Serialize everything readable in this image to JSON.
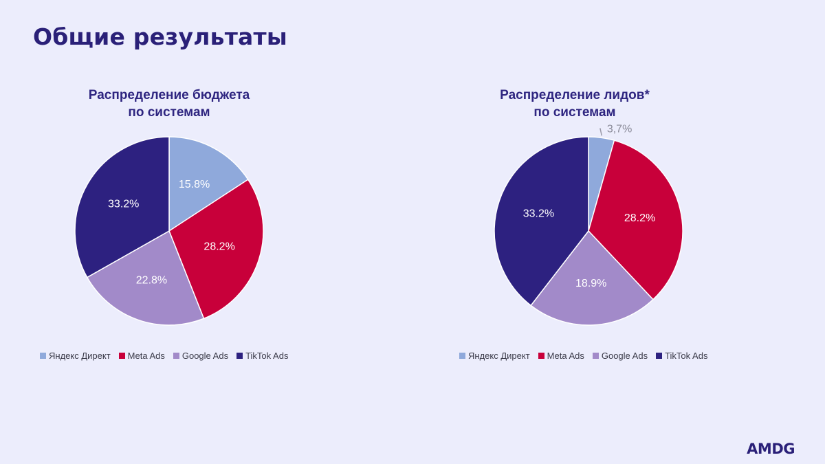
{
  "page": {
    "title": "Общие результаты",
    "logo": "AMDG"
  },
  "chart_data": [
    {
      "type": "pie",
      "title_lines": [
        "Распределение бюджета",
        "по системам"
      ],
      "categories": [
        "Яндекс Директ",
        "Meta Ads",
        "Google Ads",
        "TikTok Ads"
      ],
      "values": [
        15.8,
        28.2,
        22.8,
        33.2
      ],
      "labels": [
        "15.8%",
        "28.2%",
        "22.8%",
        "33.2%"
      ],
      "colors": [
        "#8FA9DB",
        "#C8003A",
        "#A28AC9",
        "#2D2180"
      ],
      "legend_position": "bottom"
    },
    {
      "type": "pie",
      "title_lines": [
        "Распределение лидов*",
        "по системам"
      ],
      "categories": [
        "Яндекс Директ",
        "Meta Ads",
        "Google Ads",
        "TikTok Ads"
      ],
      "values": [
        3.7,
        28.2,
        18.9,
        33.2
      ],
      "labels": [
        "3,7%",
        "28.2%",
        "18.9%",
        "33.2%"
      ],
      "colors": [
        "#8FA9DB",
        "#C8003A",
        "#A28AC9",
        "#2D2180"
      ],
      "legend_position": "bottom"
    }
  ]
}
